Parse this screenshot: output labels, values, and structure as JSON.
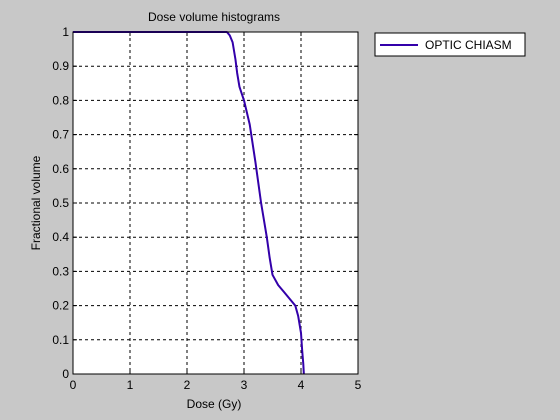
{
  "chart_data": {
    "type": "line",
    "title": "Dose volume histograms",
    "xlabel": "Dose (Gy)",
    "ylabel": "Fractional volume",
    "xlim": [
      0,
      5
    ],
    "ylim": [
      0,
      1
    ],
    "xticks": [
      0,
      1,
      2,
      3,
      4,
      5
    ],
    "yticks": [
      0,
      0.1,
      0.2,
      0.3,
      0.4,
      0.5,
      0.6,
      0.7,
      0.8,
      0.9,
      1
    ],
    "grid": true,
    "legend_position": "outside-right",
    "series": [
      {
        "name": "OPTIC CHIASM",
        "color": "#3300aa",
        "x": [
          0,
          2.7,
          2.75,
          2.8,
          2.85,
          2.88,
          2.92,
          3.0,
          3.1,
          3.2,
          3.3,
          3.4,
          3.45,
          3.5,
          3.6,
          3.7,
          3.8,
          3.9,
          3.95,
          4.0,
          4.02,
          4.04,
          4.05
        ],
        "y": [
          1,
          1,
          0.99,
          0.97,
          0.92,
          0.88,
          0.84,
          0.8,
          0.73,
          0.62,
          0.5,
          0.4,
          0.34,
          0.29,
          0.26,
          0.24,
          0.22,
          0.2,
          0.17,
          0.12,
          0.07,
          0.03,
          0
        ]
      }
    ]
  }
}
